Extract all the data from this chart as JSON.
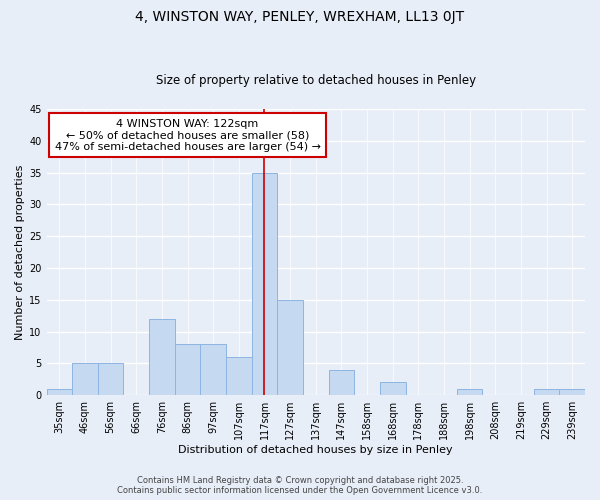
{
  "title": "4, WINSTON WAY, PENLEY, WREXHAM, LL13 0JT",
  "subtitle": "Size of property relative to detached houses in Penley",
  "xlabel": "Distribution of detached houses by size in Penley",
  "ylabel": "Number of detached properties",
  "bar_labels": [
    "35sqm",
    "46sqm",
    "56sqm",
    "66sqm",
    "76sqm",
    "86sqm",
    "97sqm",
    "107sqm",
    "117sqm",
    "127sqm",
    "137sqm",
    "147sqm",
    "158sqm",
    "168sqm",
    "178sqm",
    "188sqm",
    "198sqm",
    "208sqm",
    "219sqm",
    "229sqm",
    "239sqm"
  ],
  "bar_values": [
    1,
    5,
    5,
    0,
    12,
    8,
    8,
    6,
    35,
    15,
    0,
    4,
    0,
    2,
    0,
    0,
    1,
    0,
    0,
    1,
    1
  ],
  "bar_color": "#c5d9f1",
  "bar_edge_color": "#8db4e2",
  "vline_x_index": 8,
  "vline_color": "#cc0000",
  "annotation_line1": "4 WINSTON WAY: 122sqm",
  "annotation_line2": "← 50% of detached houses are smaller (58)",
  "annotation_line3": "47% of semi-detached houses are larger (54) →",
  "annotation_box_color": "white",
  "annotation_box_edge": "#cc0000",
  "ylim": [
    0,
    45
  ],
  "yticks": [
    0,
    5,
    10,
    15,
    20,
    25,
    30,
    35,
    40,
    45
  ],
  "footer_line1": "Contains HM Land Registry data © Crown copyright and database right 2025.",
  "footer_line2": "Contains public sector information licensed under the Open Government Licence v3.0.",
  "bg_color": "#e8eef8",
  "grid_color": "white",
  "title_fontsize": 10,
  "subtitle_fontsize": 8.5,
  "axis_label_fontsize": 8,
  "tick_fontsize": 7,
  "footer_fontsize": 6,
  "annotation_fontsize": 8
}
